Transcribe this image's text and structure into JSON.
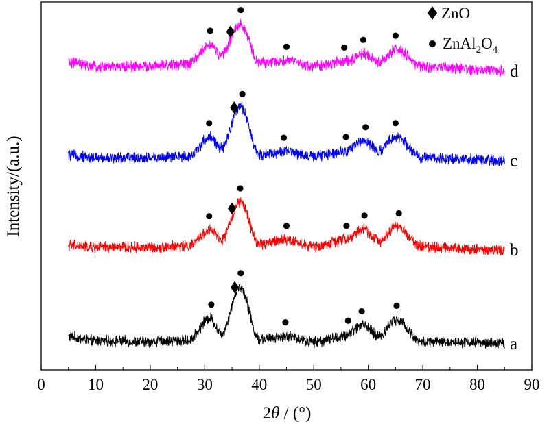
{
  "chart_data": {
    "type": "line",
    "title": "",
    "xlabel_prefix": "2",
    "xlabel_theta": "θ",
    "xlabel_suffix": " / (°)",
    "ylabel": "Intensity/(a.u.)",
    "xlim": [
      0,
      90
    ],
    "xticks": [
      0,
      10,
      20,
      30,
      40,
      50,
      60,
      70,
      80,
      90
    ],
    "x_range": [
      5,
      85
    ],
    "yaxis_tick_labels": false,
    "grid": false,
    "legend": {
      "placement": "top-right",
      "entries": [
        {
          "marker": "diamond",
          "label": "ZnO"
        },
        {
          "marker": "circle",
          "label_main": "ZnAl",
          "sub1": "2",
          "label_mid": "O",
          "sub2": "4"
        }
      ]
    },
    "series": [
      {
        "name": "a",
        "color": "#000000",
        "offset": 0,
        "profile": [
          [
            5,
            1.3
          ],
          [
            10,
            0.7
          ],
          [
            20,
            0.6
          ],
          [
            27,
            0.8
          ],
          [
            31,
            4.0
          ],
          [
            33,
            1.8
          ],
          [
            36.5,
            8.5
          ],
          [
            40,
            1.0
          ],
          [
            45,
            1.4
          ],
          [
            50,
            0.6
          ],
          [
            55,
            1.2
          ],
          [
            59,
            3.0
          ],
          [
            62,
            1.4
          ],
          [
            65,
            3.8
          ],
          [
            70,
            0.5
          ],
          [
            76,
            0.6
          ],
          [
            85,
            0.3
          ]
        ],
        "zno_peaks": [
          35.5
        ],
        "spinel_peaks": [
          31.2,
          36.6,
          44.8,
          56.3,
          58.8,
          65.2
        ]
      },
      {
        "name": "b",
        "color": "#ff0000",
        "offset": 13.7,
        "profile": [
          [
            5,
            0.8
          ],
          [
            10,
            0.5
          ],
          [
            20,
            0.5
          ],
          [
            27,
            0.7
          ],
          [
            31,
            3.0
          ],
          [
            33,
            1.6
          ],
          [
            36.5,
            7.0
          ],
          [
            40,
            1.0
          ],
          [
            45,
            1.6
          ],
          [
            50,
            0.6
          ],
          [
            56,
            1.6
          ],
          [
            59,
            3.1
          ],
          [
            62,
            1.4
          ],
          [
            65,
            3.5
          ],
          [
            70,
            0.6
          ],
          [
            85,
            0.1
          ]
        ],
        "zno_peaks": [
          35.0
        ],
        "spinel_peaks": [
          30.8,
          36.5,
          45.0,
          56.0,
          59.3,
          65.6
        ]
      },
      {
        "name": "c",
        "color": "#0000ff",
        "offset": 26.5,
        "profile": [
          [
            5,
            1.0
          ],
          [
            10,
            0.6
          ],
          [
            20,
            0.6
          ],
          [
            27,
            0.8
          ],
          [
            31,
            3.6
          ],
          [
            33,
            1.9
          ],
          [
            36.5,
            8.0
          ],
          [
            40,
            1.1
          ],
          [
            45,
            1.5
          ],
          [
            50,
            0.8
          ],
          [
            56,
            1.6
          ],
          [
            59,
            3.1
          ],
          [
            62,
            1.6
          ],
          [
            65,
            3.6
          ],
          [
            70,
            0.6
          ],
          [
            85,
            0.2
          ]
        ],
        "zno_peaks": [
          35.4
        ],
        "spinel_peaks": [
          30.8,
          36.9,
          44.5,
          55.9,
          59.5,
          65.0
        ]
      },
      {
        "name": "d",
        "color": "#ff00ff",
        "offset": 39.5,
        "profile": [
          [
            5,
            1.4
          ],
          [
            10,
            0.7
          ],
          [
            20,
            0.8
          ],
          [
            27,
            1.1
          ],
          [
            31,
            3.9
          ],
          [
            33,
            2.4
          ],
          [
            36.5,
            6.9
          ],
          [
            40,
            1.3
          ],
          [
            45,
            1.6
          ],
          [
            50,
            0.8
          ],
          [
            56,
            1.5
          ],
          [
            59,
            2.6
          ],
          [
            62,
            1.4
          ],
          [
            65,
            3.2
          ],
          [
            70,
            0.7
          ],
          [
            85,
            0.1
          ]
        ],
        "zno_peaks": [
          34.7
        ],
        "spinel_peaks": [
          31.0,
          36.6,
          45.0,
          55.6,
          59.1,
          65.0
        ]
      }
    ]
  }
}
